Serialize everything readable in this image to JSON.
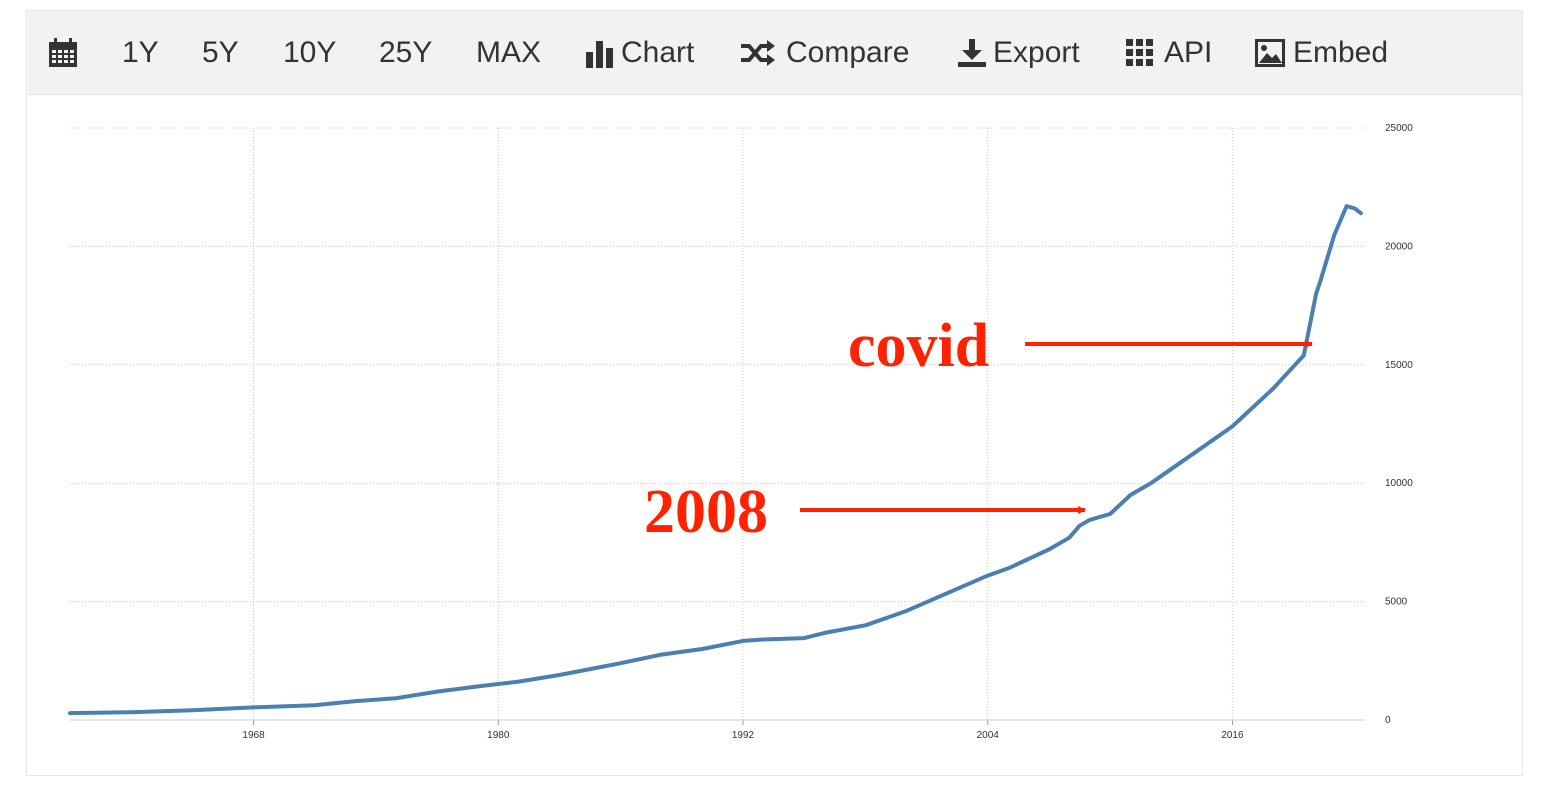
{
  "toolbar": {
    "items": [
      {
        "label": "",
        "icon": "calendar-icon"
      },
      {
        "label": "1Y"
      },
      {
        "label": "5Y"
      },
      {
        "label": "10Y"
      },
      {
        "label": "25Y"
      },
      {
        "label": "MAX"
      },
      {
        "label": "Chart",
        "icon": "bar-chart-icon"
      },
      {
        "label": "Compare",
        "icon": "shuffle-icon"
      },
      {
        "label": "Export",
        "icon": "download-icon"
      },
      {
        "label": "API",
        "icon": "grid-icon"
      },
      {
        "label": "Embed",
        "icon": "image-icon"
      }
    ]
  },
  "colors": {
    "line": "#4a7fb0",
    "annotation": "#ff2200",
    "toolbar_bg": "#f2f2f2",
    "grid": "#cccccc"
  },
  "chart_data": {
    "type": "line",
    "title": "",
    "xlabel": "",
    "ylabel": "",
    "xlim": [
      1959,
      2022.5
    ],
    "ylim": [
      0,
      25000
    ],
    "x_ticks": [
      "1968",
      "1980",
      "1992",
      "2004",
      "2016"
    ],
    "y_ticks": [
      "0",
      "5000",
      "10000",
      "15000",
      "20000",
      "25000"
    ],
    "grid": true,
    "legend": "none",
    "series": [
      {
        "name": "",
        "x": [
          1959,
          1962,
          1965,
          1968,
          1971,
          1973,
          1975,
          1977,
          1979,
          1981,
          1983,
          1984.5,
          1986,
          1988,
          1990,
          1992,
          1993,
          1995,
          1996,
          1998,
          2000,
          2002,
          2004,
          2005,
          2007,
          2008,
          2008.5,
          2009,
          2010,
          2011,
          2012,
          2014,
          2016,
          2018,
          2019.5,
          2020.1,
          2020.3,
          2021,
          2021.6,
          2022,
          2022.3
        ],
        "values": [
          290,
          330,
          410,
          530,
          620,
          800,
          920,
          1200,
          1420,
          1620,
          1900,
          2150,
          2400,
          2760,
          3000,
          3340,
          3400,
          3460,
          3680,
          4000,
          4600,
          5350,
          6100,
          6400,
          7200,
          7700,
          8200,
          8450,
          8700,
          9500,
          10000,
          11200,
          12400,
          14000,
          15400,
          18000,
          18500,
          20500,
          21700,
          21600,
          21400
        ]
      }
    ],
    "annotations": [
      {
        "text": "covid",
        "x": 2019.2,
        "y": 15700
      },
      {
        "text": "2008",
        "x": 2008.5,
        "y": 8800
      }
    ]
  }
}
